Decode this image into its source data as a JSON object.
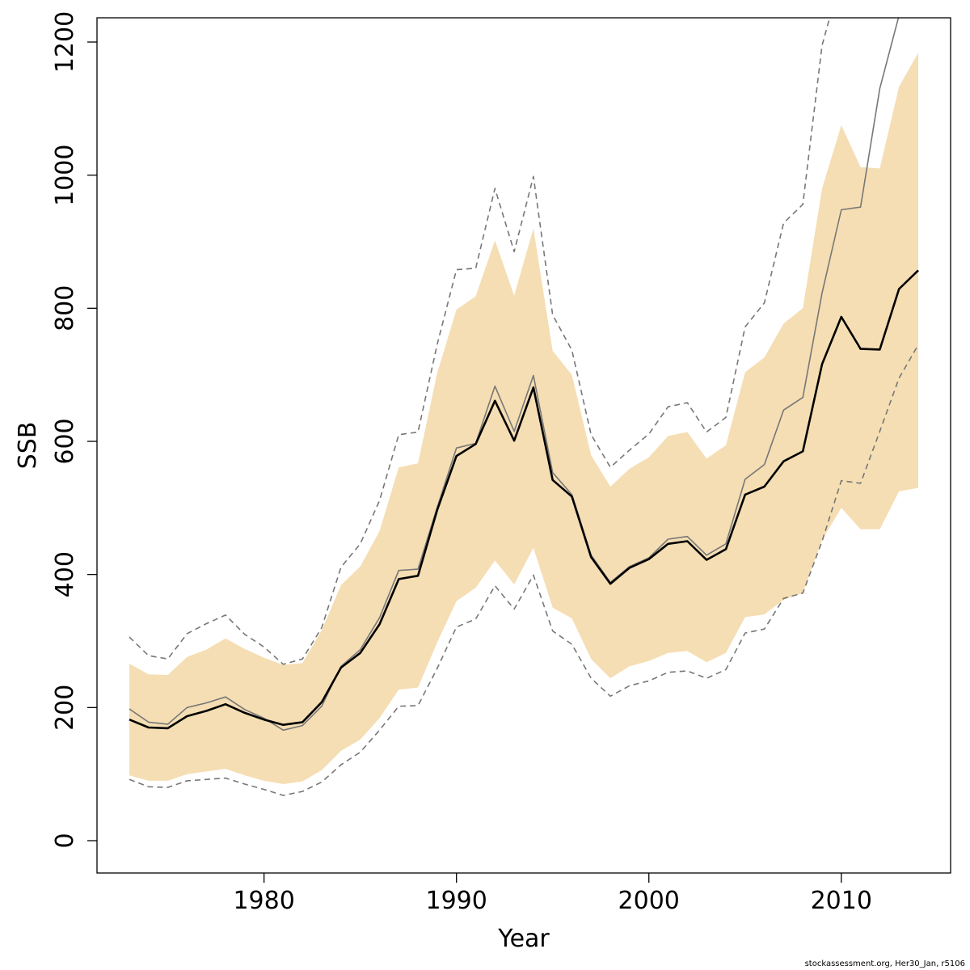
{
  "chart_data": {
    "type": "line",
    "xlabel": "Year",
    "ylabel": "SSB",
    "xlim": [
      1971.5,
      1975.5
    ],
    "ylim": [
      -50,
      1235
    ],
    "x_ticks": [
      1980,
      1990,
      2000,
      2010
    ],
    "y_ticks": [
      0,
      200,
      400,
      600,
      800,
      1000,
      1200
    ],
    "x_tick_labels": [
      "1980",
      "1990",
      "2000",
      "2010"
    ],
    "y_tick_labels": [
      "0",
      "200",
      "400",
      "600",
      "800",
      "1000",
      "1200"
    ],
    "grid": false,
    "legend": "none",
    "x": [
      1973,
      1974,
      1975,
      1976,
      1977,
      1978,
      1979,
      1980,
      1981,
      1982,
      1983,
      1984,
      1985,
      1986,
      1987,
      1988,
      1989,
      1990,
      1991,
      1992,
      1993,
      1994,
      1995,
      1996,
      1997,
      1998,
      1999,
      2000,
      2001,
      2002,
      2003,
      2004,
      2005,
      2006,
      2007,
      2008,
      2009,
      2010,
      2011,
      2012,
      2013,
      2014
    ],
    "band_upper": [
      266,
      250,
      249,
      276,
      287,
      304,
      288,
      275,
      264,
      267,
      316,
      384,
      412,
      465,
      561,
      567,
      703,
      798,
      818,
      902,
      819,
      920,
      736,
      700,
      579,
      532,
      559,
      576,
      608,
      614,
      574,
      594,
      704,
      726,
      777,
      800,
      980,
      1075,
      1012,
      1010,
      1133,
      1184
    ],
    "band_lower": [
      98,
      90,
      90,
      100,
      104,
      108,
      98,
      90,
      85,
      89,
      106,
      135,
      152,
      184,
      227,
      230,
      298,
      360,
      380,
      421,
      385,
      440,
      350,
      334,
      273,
      244,
      262,
      270,
      282,
      285,
      268,
      282,
      336,
      340,
      362,
      372,
      452,
      500,
      468,
      468,
      525,
      530
    ],
    "series": [
      {
        "role": "estimate",
        "color": "#000000",
        "values": [
          182,
          170,
          169,
          187,
          195,
          205,
          192,
          182,
          174,
          178,
          208,
          260,
          282,
          325,
          393,
          398,
          497,
          578,
          596,
          661,
          601,
          681,
          542,
          517,
          426,
          386,
          410,
          423,
          446,
          450,
          422,
          438,
          520,
          532,
          570,
          585,
          716,
          787,
          739,
          738,
          829,
          857
        ]
      },
      {
        "role": "retrospective",
        "color": "#777777",
        "values": [
          198,
          178,
          175,
          200,
          207,
          216,
          197,
          184,
          166,
          173,
          202,
          262,
          287,
          335,
          406,
          408,
          501,
          590,
          597,
          683,
          615,
          699,
          553,
          520,
          429,
          388,
          412,
          425,
          453,
          457,
          429,
          446,
          543,
          565,
          647,
          666,
          823,
          948,
          952,
          1130,
          1240,
          1240
        ]
      },
      {
        "role": "upper-bound",
        "color": "#777777",
        "dashed": true,
        "values": [
          306,
          278,
          273,
          311,
          326,
          339,
          310,
          291,
          265,
          273,
          320,
          411,
          446,
          511,
          610,
          614,
          746,
          858,
          860,
          980,
          885,
          998,
          790,
          737,
          610,
          561,
          587,
          611,
          652,
          658,
          614,
          636,
          772,
          808,
          928,
          956,
          1195,
          1300,
          1300,
          1300,
          1300,
          1300
        ]
      },
      {
        "role": "lower-bound",
        "color": "#777777",
        "dashed": true,
        "values": [
          92,
          81,
          80,
          90,
          92,
          94,
          85,
          77,
          68,
          74,
          88,
          114,
          133,
          166,
          202,
          203,
          259,
          321,
          333,
          383,
          348,
          399,
          315,
          295,
          244,
          217,
          233,
          240,
          253,
          255,
          244,
          257,
          312,
          318,
          364,
          372,
          450,
          541,
          537,
          615,
          695,
          745
        ]
      }
    ],
    "colors": {
      "band": "#f5deb3",
      "axis": "#000000"
    },
    "credit": "stockassessment.org, Her30_Jan, r5106"
  }
}
